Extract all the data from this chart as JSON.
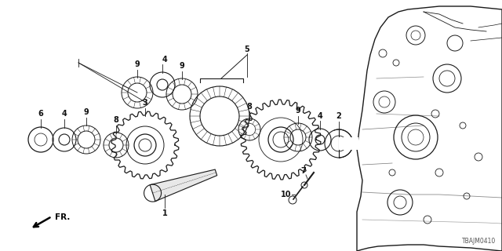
{
  "bg_color": "#ffffff",
  "diagram_id": "TBAJM0410",
  "fig_width": 6.4,
  "fig_height": 3.2,
  "dpi": 100,
  "line_color": "#1a1a1a",
  "text_color": "#111111"
}
